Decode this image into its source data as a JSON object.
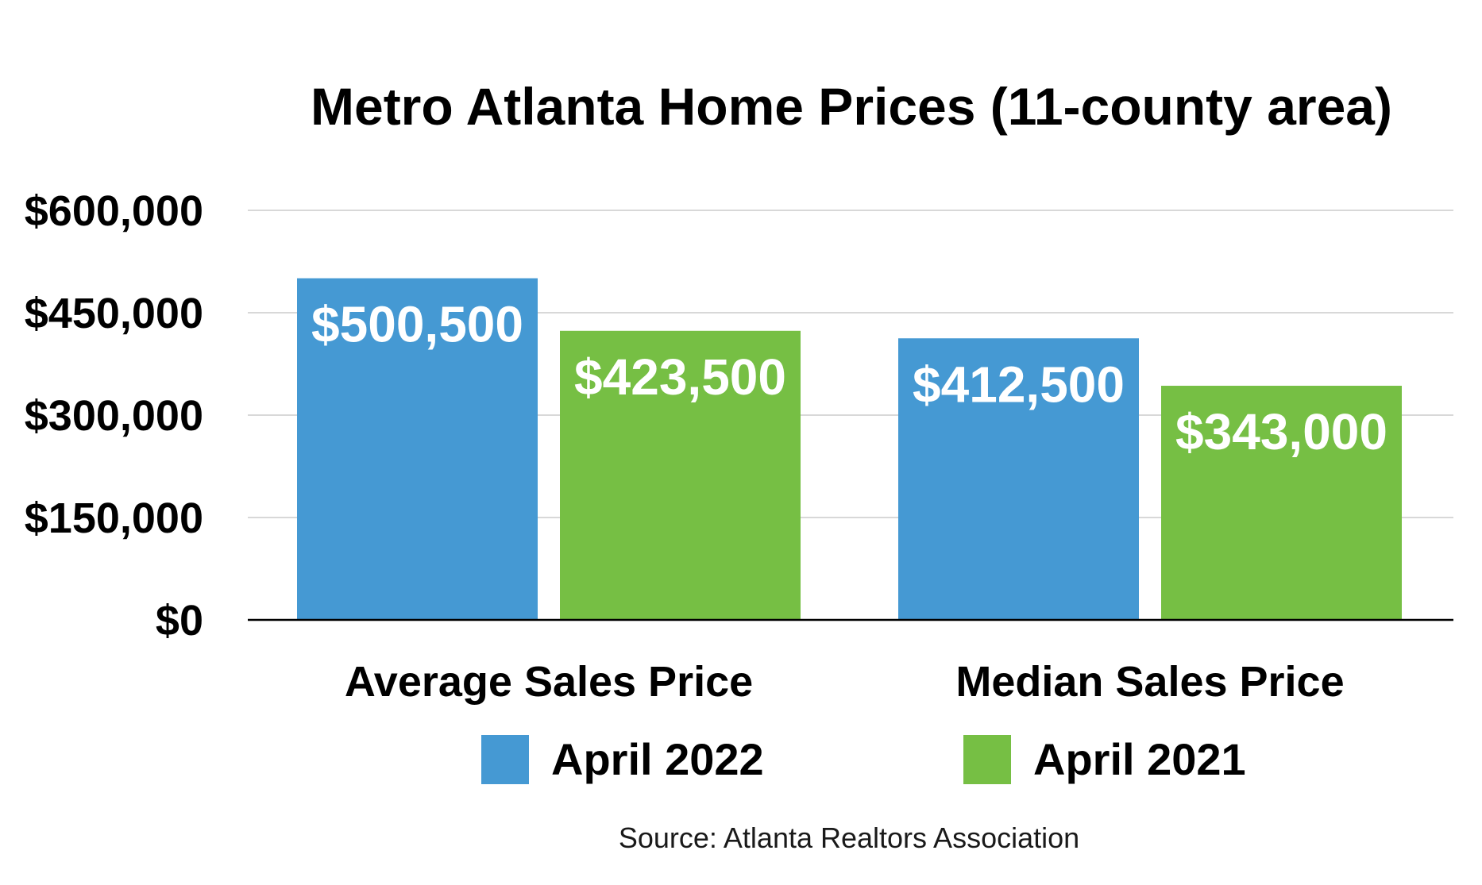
{
  "chart_data": {
    "type": "bar",
    "title": "Metro Atlanta Home Prices (11-county area)",
    "categories": [
      "Average Sales Price",
      "Median Sales Price"
    ],
    "series": [
      {
        "name": "April 2022",
        "color": "#4599d3",
        "values": [
          500500,
          412500
        ],
        "labels": [
          "$500,500",
          "$412,500"
        ]
      },
      {
        "name": "April 2021",
        "color": "#76bf44",
        "values": [
          423500,
          343000
        ],
        "labels": [
          "$423,500",
          "$343,000"
        ]
      }
    ],
    "yticks": [
      0,
      150000,
      300000,
      450000,
      600000
    ],
    "ytick_labels": [
      "$0",
      "$150,000",
      "$300,000",
      "$450,000",
      "$600,000"
    ],
    "ylim": [
      0,
      600000
    ],
    "grid": true,
    "legend_position": "bottom",
    "xlabel": "",
    "ylabel": "",
    "source": "Source: Atlanta Realtors Association"
  }
}
